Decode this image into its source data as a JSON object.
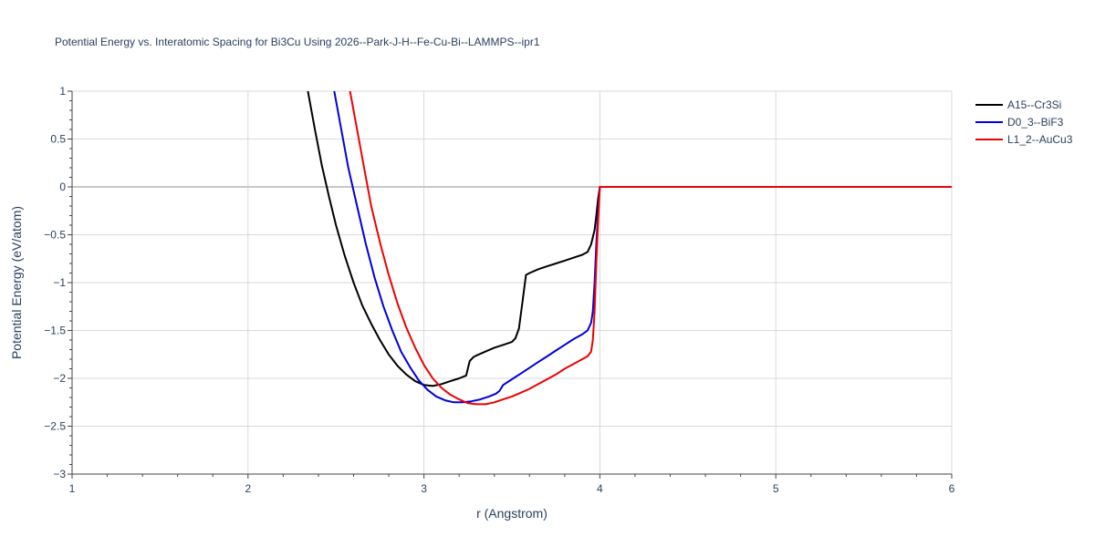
{
  "chart_data": {
    "type": "line",
    "title": "Potential Energy vs. Interatomic Spacing for Bi3Cu Using 2026--Park-J-H--Fe-Cu-Bi--LAMMPS--ipr1",
    "xlabel": "r (Angstrom)",
    "ylabel": "Potential Energy (eV/atom)",
    "xlim": [
      1,
      6
    ],
    "ylim": [
      -3,
      1
    ],
    "x_ticks": [
      1,
      2,
      3,
      4,
      5,
      6
    ],
    "y_ticks": [
      -3,
      -2.5,
      -2,
      -1.5,
      -1,
      -0.5,
      0,
      0.5,
      1
    ],
    "x_tick_labels": [
      "1",
      "2",
      "3",
      "4",
      "5",
      "6"
    ],
    "y_tick_labels": [
      "−3",
      "−2.5",
      "−2",
      "−1.5",
      "−1",
      "−0.5",
      "0",
      "0.5",
      "1"
    ],
    "grid": true,
    "legend_position": "top-right",
    "series": [
      {
        "name": "A15--Cr3Si",
        "color": "#000000",
        "x": [
          2.34,
          2.38,
          2.42,
          2.46,
          2.5,
          2.55,
          2.6,
          2.65,
          2.7,
          2.75,
          2.8,
          2.85,
          2.9,
          2.95,
          3.0,
          3.05,
          3.1,
          3.15,
          3.2,
          3.24,
          3.26,
          3.28,
          3.3,
          3.35,
          3.4,
          3.45,
          3.5,
          3.52,
          3.54,
          3.56,
          3.58,
          3.6,
          3.65,
          3.7,
          3.75,
          3.8,
          3.85,
          3.9,
          3.93,
          3.95,
          3.97,
          3.98,
          3.99,
          4.0,
          4.2,
          4.5,
          5.0,
          5.5,
          6.0
        ],
        "y": [
          1.0,
          0.6,
          0.22,
          -0.1,
          -0.4,
          -0.72,
          -1.0,
          -1.24,
          -1.43,
          -1.6,
          -1.75,
          -1.87,
          -1.96,
          -2.03,
          -2.07,
          -2.08,
          -2.06,
          -2.03,
          -2.0,
          -1.97,
          -1.82,
          -1.78,
          -1.76,
          -1.72,
          -1.68,
          -1.65,
          -1.62,
          -1.58,
          -1.48,
          -1.2,
          -0.92,
          -0.9,
          -0.86,
          -0.83,
          -0.8,
          -0.77,
          -0.74,
          -0.71,
          -0.68,
          -0.6,
          -0.45,
          -0.3,
          -0.12,
          0.0,
          0.0,
          0.0,
          0.0,
          0.0,
          0.0
        ]
      },
      {
        "name": "D0_3--BiF3",
        "color": "#0000dd",
        "x": [
          2.49,
          2.53,
          2.57,
          2.62,
          2.67,
          2.72,
          2.77,
          2.82,
          2.87,
          2.92,
          2.97,
          3.02,
          3.07,
          3.12,
          3.17,
          3.22,
          3.27,
          3.32,
          3.37,
          3.41,
          3.43,
          3.45,
          3.5,
          3.55,
          3.6,
          3.65,
          3.7,
          3.75,
          3.8,
          3.85,
          3.9,
          3.93,
          3.95,
          3.96,
          3.97,
          3.98,
          3.99,
          4.0,
          4.2,
          4.5,
          5.0,
          5.5,
          6.0
        ],
        "y": [
          1.0,
          0.6,
          0.2,
          -0.2,
          -0.6,
          -0.95,
          -1.25,
          -1.5,
          -1.72,
          -1.88,
          -2.02,
          -2.12,
          -2.19,
          -2.23,
          -2.25,
          -2.25,
          -2.24,
          -2.22,
          -2.19,
          -2.16,
          -2.13,
          -2.07,
          -2.01,
          -1.95,
          -1.89,
          -1.83,
          -1.77,
          -1.71,
          -1.65,
          -1.59,
          -1.54,
          -1.5,
          -1.42,
          -1.3,
          -1.0,
          -0.6,
          -0.25,
          0.0,
          0.0,
          0.0,
          0.0,
          0.0,
          0.0
        ]
      },
      {
        "name": "L1_2--AuCu3",
        "color": "#ee0000",
        "x": [
          2.58,
          2.62,
          2.66,
          2.7,
          2.75,
          2.8,
          2.85,
          2.9,
          2.95,
          3.0,
          3.05,
          3.1,
          3.15,
          3.2,
          3.25,
          3.3,
          3.35,
          3.4,
          3.45,
          3.5,
          3.55,
          3.6,
          3.65,
          3.7,
          3.75,
          3.8,
          3.85,
          3.9,
          3.93,
          3.95,
          3.96,
          3.97,
          3.98,
          3.99,
          4.0,
          4.2,
          4.5,
          5.0,
          5.5,
          6.0
        ],
        "y": [
          1.0,
          0.6,
          0.2,
          -0.2,
          -0.58,
          -0.92,
          -1.22,
          -1.47,
          -1.68,
          -1.86,
          -2.0,
          -2.1,
          -2.17,
          -2.22,
          -2.26,
          -2.27,
          -2.27,
          -2.25,
          -2.22,
          -2.19,
          -2.15,
          -2.11,
          -2.06,
          -2.01,
          -1.96,
          -1.9,
          -1.85,
          -1.8,
          -1.77,
          -1.72,
          -1.6,
          -1.3,
          -0.8,
          -0.35,
          0.0,
          0.0,
          0.0,
          0.0,
          0.0,
          0.0
        ]
      }
    ]
  }
}
